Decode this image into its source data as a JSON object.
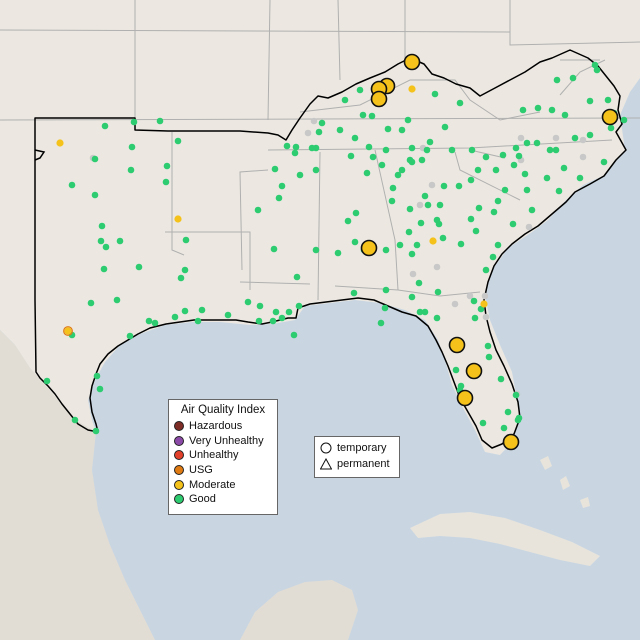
{
  "map": {
    "colors": {
      "ocean": "#c9d6e2",
      "land": "#ece8e1",
      "state_border": "#aaaaaa",
      "region_outline": "#000000"
    },
    "highlight_markers": [
      {
        "name": "moderate-marker-kentucky-1",
        "color": "#f4c21a"
      },
      {
        "name": "moderate-marker-kentucky-2",
        "color": "#f4c21a"
      },
      {
        "name": "moderate-marker-kentucky-3",
        "color": "#f4c21a"
      },
      {
        "name": "moderate-marker-kentucky-4",
        "color": "#f4c21a"
      },
      {
        "name": "moderate-marker-virginia",
        "color": "#f4c21a"
      },
      {
        "name": "moderate-marker-alabama",
        "color": "#f4c21a"
      },
      {
        "name": "moderate-marker-florida-1",
        "color": "#f4c21a"
      },
      {
        "name": "moderate-marker-florida-2",
        "color": "#f4c21a"
      },
      {
        "name": "moderate-marker-florida-3",
        "color": "#f4c21a"
      },
      {
        "name": "moderate-marker-florida-4",
        "color": "#f4c21a"
      }
    ]
  },
  "legend": {
    "title": "Air Quality Index",
    "items": [
      {
        "label": "Hazardous",
        "color": "#7e2c26"
      },
      {
        "label": "Very Unhealthy",
        "color": "#8c4aa8"
      },
      {
        "label": "Unhealthy",
        "color": "#e2402a"
      },
      {
        "label": "USG",
        "color": "#e07a12"
      },
      {
        "label": "Moderate",
        "color": "#f4c21a"
      },
      {
        "label": "Good",
        "color": "#2ecc71"
      }
    ]
  },
  "monitor_types": {
    "items": [
      {
        "label": "temporary",
        "shape": "circle-icon"
      },
      {
        "label": "permanent",
        "shape": "triangle-icon"
      }
    ]
  }
}
